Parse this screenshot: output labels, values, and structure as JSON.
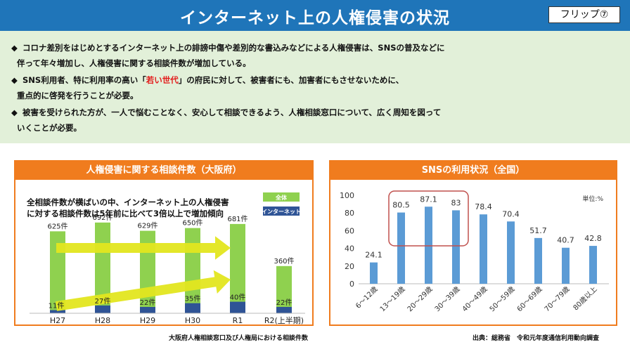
{
  "header": {
    "title": "インターネット上の人権侵害の状況",
    "flip_label": "フリップ⑦"
  },
  "bullets": {
    "b1_line1": "コロナ差別をはじめとするインターネット上の誹謗中傷や差別的な書込みなどによる人権侵害は、SNSの普及などに",
    "b1_line2": "伴って年々増加し、人権侵害に関する相談件数が増加している。",
    "b2_pre": "SNS利用者、特に利用率の高い「",
    "b2_highlight": "若い世代",
    "b2_post": "」の府民に対して、被害者にも、加害者にもさせないために、",
    "b2_line2": "重点的に啓発を行うことが必要。",
    "b3_line1": "被害を受けられた方が、一人で悩むことなく、安心して相談できるよう、人権相談窓口について、広く周知を図って",
    "b3_line2": "いくことが必要。"
  },
  "colors": {
    "header_bg": "#1f75b9",
    "band_bg": "#e2f0d9",
    "panel_border": "#f07c1e",
    "total_bar": "#8fd14f",
    "internet_bar": "#2f5496",
    "sns_bar": "#5b9bd5",
    "arrow": "#e3e61f",
    "highlight_box": "#c0504d"
  },
  "chart_data": [
    {
      "type": "bar",
      "title": "人権侵害に関する相談件数（大阪府）",
      "annotation_line1": "全相談件数が横ばいの中、インターネット上の人権侵害",
      "annotation_line2": "に対する相談件数は5年前に比べて3倍以上で増加傾向",
      "categories": [
        "H27",
        "H28",
        "H29",
        "H30",
        "R1",
        "R2(上半期)"
      ],
      "series": [
        {
          "name": "全体",
          "values": [
            625,
            692,
            629,
            650,
            681,
            360
          ],
          "labels": [
            "625件",
            "692件",
            "629件",
            "650件",
            "681件",
            "360件"
          ]
        },
        {
          "name": "インターネット",
          "values": [
            11,
            27,
            22,
            35,
            40,
            22
          ],
          "labels": [
            "11件",
            "27件",
            "22件",
            "35件",
            "40件",
            "22件"
          ]
        }
      ],
      "ylim": [
        0,
        750
      ],
      "source": "大阪府人権相談窓口及び人権局における相談件数"
    },
    {
      "type": "bar",
      "title": "SNSの利用状況（全国）",
      "categories": [
        "6～12歳",
        "13～19歳",
        "20～29歳",
        "30～39歳",
        "40～49歳",
        "50～59歳",
        "60～69歳",
        "70～79歳",
        "80歳以上"
      ],
      "values": [
        24.1,
        80.5,
        87.1,
        83,
        78.4,
        70.4,
        51.7,
        40.7,
        42.8
      ],
      "value_labels": [
        "24.1",
        "80.5",
        "87.1",
        "83",
        "78.4",
        "70.4",
        "51.7",
        "40.7",
        "42.8"
      ],
      "ylim": [
        0,
        100
      ],
      "yticks": [
        "0",
        "20",
        "40",
        "60",
        "80",
        "100"
      ],
      "unit_label": "単位:%",
      "source": "出典：総務省　令和元年度通信利用動向調査"
    }
  ]
}
